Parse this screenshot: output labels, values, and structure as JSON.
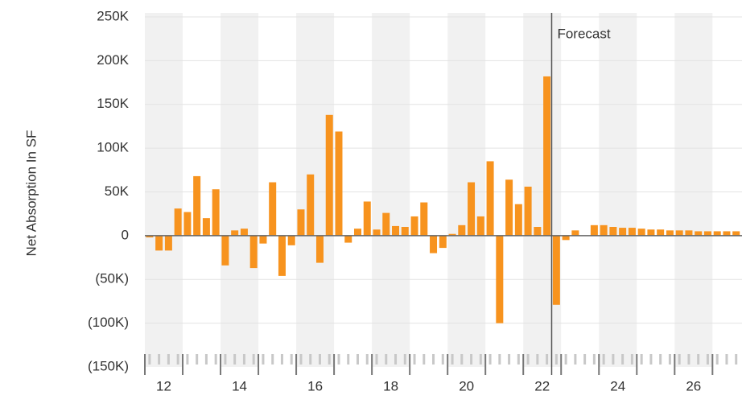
{
  "chart_data": {
    "type": "bar",
    "y_label": "Net Absorption In SF",
    "annotation": "Forecast",
    "forecast_x": 2022.75,
    "color": "#f7931e",
    "x": [
      2012.125,
      2012.375,
      2012.625,
      2012.875,
      2013.125,
      2013.375,
      2013.625,
      2013.875,
      2014.125,
      2014.375,
      2014.625,
      2014.875,
      2015.125,
      2015.375,
      2015.625,
      2015.875,
      2016.125,
      2016.375,
      2016.625,
      2016.875,
      2017.125,
      2017.375,
      2017.625,
      2017.875,
      2018.125,
      2018.375,
      2018.625,
      2018.875,
      2019.125,
      2019.375,
      2019.625,
      2019.875,
      2020.125,
      2020.375,
      2020.625,
      2020.875,
      2021.125,
      2021.375,
      2021.625,
      2021.875,
      2022.125,
      2022.375,
      2022.625,
      2022.875,
      2023.125,
      2023.375,
      2023.625,
      2023.875,
      2024.125,
      2024.375,
      2024.625,
      2024.875,
      2025.125,
      2025.375,
      2025.625,
      2025.875,
      2026.125,
      2026.375,
      2026.625,
      2026.875,
      2027.125,
      2027.375,
      2027.625
    ],
    "values": [
      -2000,
      -17000,
      -17000,
      31000,
      27000,
      68000,
      20000,
      53000,
      -34000,
      6000,
      8000,
      -37000,
      -9000,
      61000,
      -46000,
      -11000,
      30000,
      70000,
      -31000,
      138000,
      119000,
      -8000,
      8000,
      39000,
      7000,
      26000,
      11000,
      10000,
      22000,
      38000,
      -20000,
      -14000,
      2000,
      12000,
      61000,
      22000,
      85000,
      -100000,
      64000,
      36000,
      56000,
      10000,
      182000,
      -79000,
      -5000,
      6000,
      0,
      12000,
      12000,
      10000,
      9000,
      9000,
      8000,
      7000,
      7000,
      6000,
      6000,
      6000,
      5000,
      5000,
      5000,
      5000,
      5000
    ],
    "xlim": [
      2012,
      2027.78
    ],
    "xticks": [
      {
        "value": 2012.5,
        "label": "12"
      },
      {
        "value": 2014.5,
        "label": "14"
      },
      {
        "value": 2016.5,
        "label": "16"
      },
      {
        "value": 2018.5,
        "label": "18"
      },
      {
        "value": 2020.5,
        "label": "20"
      },
      {
        "value": 2022.5,
        "label": "22"
      },
      {
        "value": 2024.5,
        "label": "24"
      },
      {
        "value": 2026.5,
        "label": "26"
      }
    ],
    "ylim": [
      -150000,
      250000
    ],
    "yticks": [
      {
        "value": -150000,
        "label": "(150K)"
      },
      {
        "value": -100000,
        "label": "(100K)"
      },
      {
        "value": -50000,
        "label": "(50K)"
      },
      0,
      {
        "value": 50000,
        "label": "50K"
      },
      {
        "value": 100000,
        "label": "100K"
      },
      {
        "value": 150000,
        "label": "150K"
      },
      {
        "value": 200000,
        "label": "200K"
      },
      {
        "value": 250000,
        "label": "250K"
      }
    ],
    "grid": true
  }
}
